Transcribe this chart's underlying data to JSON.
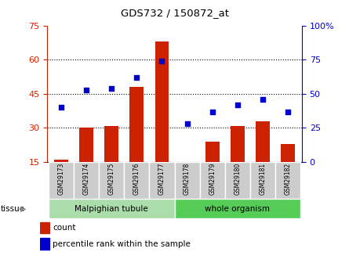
{
  "title": "GDS732 / 150872_at",
  "samples": [
    "GSM29173",
    "GSM29174",
    "GSM29175",
    "GSM29176",
    "GSM29177",
    "GSM29178",
    "GSM29179",
    "GSM29180",
    "GSM29181",
    "GSM29182"
  ],
  "counts": [
    16,
    30,
    31,
    48,
    68,
    15,
    24,
    31,
    33,
    23
  ],
  "percentiles": [
    40,
    53,
    54,
    62,
    74,
    28,
    37,
    42,
    46,
    37
  ],
  "tissue_groups": [
    {
      "label": "Malpighian tubule",
      "indices": [
        0,
        1,
        2,
        3,
        4
      ],
      "color": "#aaddaa"
    },
    {
      "label": "whole organism",
      "indices": [
        5,
        6,
        7,
        8,
        9
      ],
      "color": "#55cc55"
    }
  ],
  "ylim_left": [
    15,
    75
  ],
  "ylim_right": [
    0,
    100
  ],
  "left_ticks": [
    15,
    30,
    45,
    60,
    75
  ],
  "right_ticks": [
    0,
    25,
    50,
    75,
    100
  ],
  "right_tick_labels": [
    "0",
    "25",
    "50",
    "75",
    "100%"
  ],
  "bar_color": "#cc2200",
  "dot_color": "#0000cc",
  "bar_width": 0.55,
  "left_tick_color": "#cc2200",
  "right_tick_color": "#0000cc",
  "legend_count_color": "#cc2200",
  "legend_pct_color": "#0000cc",
  "tissue_label": "tissue",
  "legend_count": "count",
  "legend_pct": "percentile rank within the sample",
  "xlabel_bg": "#cccccc",
  "figsize": [
    4.45,
    3.45
  ],
  "dpi": 100
}
